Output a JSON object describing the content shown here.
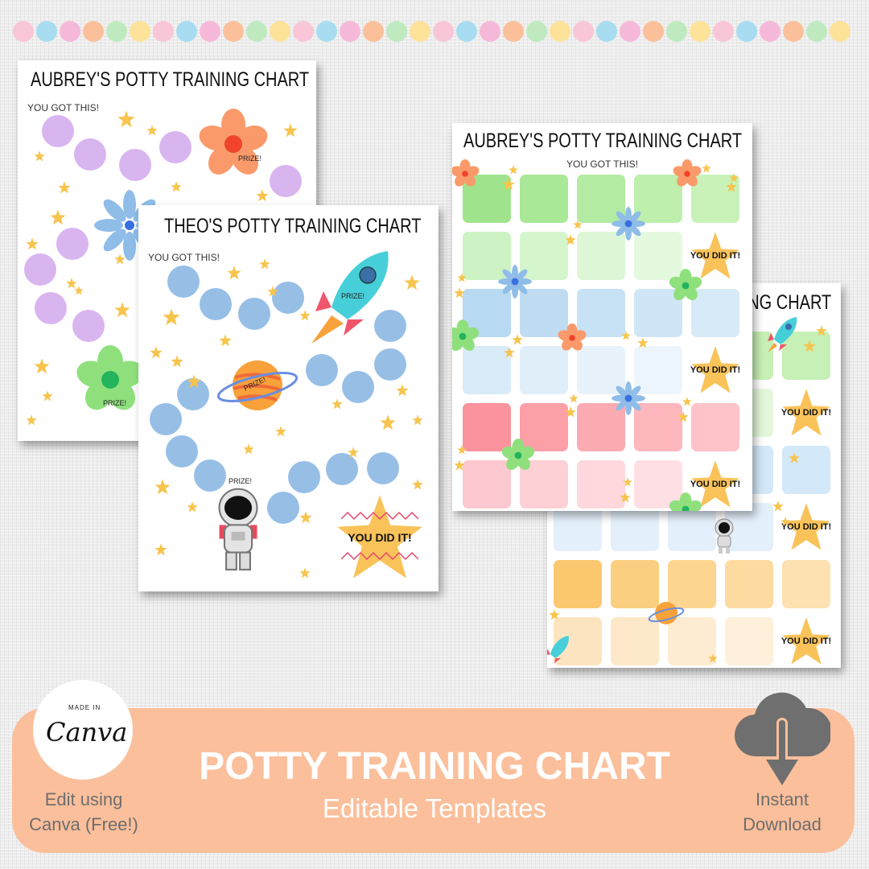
{
  "dot_colors": [
    "#f9c6d8",
    "#a8dcf0",
    "#f6b8d8",
    "#fbc09a",
    "#bfeac0",
    "#fde29a"
  ],
  "cards": {
    "aubrey_dots": {
      "title": "AUBREY'S POTTY TRAINING CHART",
      "subtitle": "YOU GOT THIS!",
      "prize": "PRIZE!",
      "prize2": "PRIZE!",
      "circle_color": "#d9b5f0"
    },
    "theo_dots": {
      "title": "THEO'S POTTY TRAINING CHART",
      "subtitle": "YOU GOT THIS!",
      "prize_rocket": "PRIZE!",
      "prize_planet": "PRIZE!",
      "prize_astronaut": "PRIZE!",
      "reward": "YOU DID IT!",
      "circle_color": "#97bfe6"
    },
    "aubrey_grid": {
      "title": "AUBREY'S POTTY TRAINING CHART",
      "subtitle": "YOU GOT THIS!",
      "reward": "YOU DID IT!",
      "row_colors": [
        [
          "#9fe48c",
          "#a8e896",
          "#b3eba2",
          "#beefad",
          "#c9f2b9"
        ],
        [
          "#cdf3c4",
          "#d5f5cd",
          "#ddf7d6",
          "#e5f9df",
          "#eefbe9"
        ],
        [
          "#b8d9f2",
          "#bfdcf3",
          "#c7e1f5",
          "#cfe6f7",
          "#d7eaf8"
        ],
        [
          "#d9ebf8",
          "#e0eef9",
          "#e7f2fb",
          "#edf5fc",
          "#f3f8fd"
        ],
        [
          "#fb939c",
          "#fc9fa7",
          "#fcabb2",
          "#fdb7bd",
          "#fdc3c8"
        ],
        [
          "#fdc8cf",
          "#fdd0d6",
          "#fed8dd",
          "#fee0e4",
          "#fee8eb"
        ]
      ]
    },
    "theo_grid": {
      "title": "THEO'S POTTY TRAINING CHART",
      "reward": "YOU DID IT!",
      "row_colors": [
        [
          "#c6f0b5",
          "#c6f0b5",
          "#c6f0b5",
          "#c6f0b5",
          "#c6f0b5"
        ],
        [
          "#e2f7da",
          "#e2f7da",
          "#e2f7da",
          "#e2f7da",
          "#e2f7da"
        ],
        [
          "#d3e8f8",
          "#d3e8f8",
          "#d3e8f8",
          "#d3e8f8",
          "#d3e8f8"
        ],
        [
          "#e3f0fb",
          "#e3f0fb",
          "#e3f0fb",
          "#e3f0fb",
          "#e3f0fb"
        ],
        [
          "#fbc86f",
          "#fbcf80",
          "#fcd590",
          "#fddba0",
          "#fde1b0"
        ],
        [
          "#fde4c0",
          "#fde8c9",
          "#feecd2",
          "#fef0db",
          "#fef3e3"
        ]
      ]
    }
  },
  "banner": {
    "title": "POTTY TRAINING CHART",
    "subtitle": "Editable Templates",
    "canva_badge_small": "MADE IN",
    "canva_badge_logo": "Canva",
    "left_line1": "Edit using",
    "left_line2": "Canva (Free!)",
    "right_line1": "Instant",
    "right_line2": "Download",
    "download_icon": "cloud-download-icon",
    "color": "#fbbf9b"
  }
}
